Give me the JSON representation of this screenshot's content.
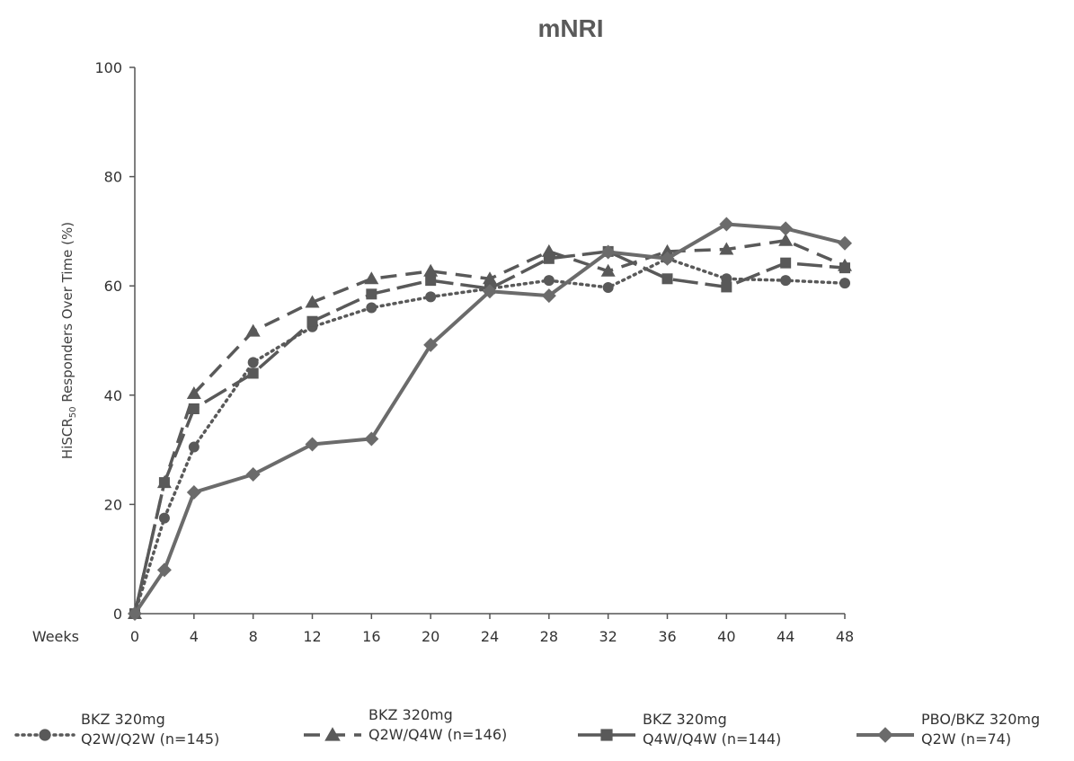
{
  "chart_data": {
    "type": "line",
    "title": "mNRI",
    "xlabel": "Weeks",
    "ylabel_main": "HiSCR",
    "ylabel_sub": "50",
    "ylabel_rest": " Responders Over Time (%)",
    "ylim": [
      0,
      100
    ],
    "yticks": [
      0,
      20,
      40,
      60,
      80,
      100
    ],
    "xlim": [
      0,
      48
    ],
    "xticks": [
      0,
      4,
      8,
      12,
      16,
      20,
      24,
      28,
      32,
      36,
      40,
      44,
      48
    ],
    "grid": false,
    "legend_position": "bottom",
    "series": [
      {
        "name_line1": "BKZ 320mg",
        "name_line2": "Q2W/Q2W (n=145)",
        "style": "dotted",
        "marker": "circle",
        "color": "#595959",
        "x": [
          0,
          2,
          4,
          8,
          12,
          16,
          20,
          24,
          28,
          32,
          36,
          40,
          44,
          48
        ],
        "y": [
          0,
          17.5,
          30.5,
          46,
          52.5,
          56,
          58,
          59.5,
          61,
          59.7,
          65,
          61.3,
          61,
          60.5
        ]
      },
      {
        "name_line1": "BKZ 320mg",
        "name_line2": "Q2W/Q4W (n=146)",
        "style": "dashed",
        "marker": "triangle",
        "color": "#595959",
        "x": [
          0,
          2,
          4,
          8,
          12,
          16,
          20,
          24,
          28,
          32,
          36,
          40,
          44,
          48
        ],
        "y": [
          0,
          24,
          40.3,
          51.7,
          57,
          61.3,
          62.7,
          61.3,
          66.3,
          62.7,
          66.3,
          66.7,
          68.3,
          63.7
        ]
      },
      {
        "name_line1": "BKZ 320mg",
        "name_line2": "Q4W/Q4W (n=144)",
        "style": "longdash",
        "marker": "square",
        "color": "#595959",
        "x": [
          0,
          2,
          4,
          8,
          12,
          16,
          20,
          24,
          28,
          32,
          36,
          40,
          44,
          48
        ],
        "y": [
          0,
          24,
          37.5,
          44,
          53.5,
          58.5,
          61,
          59.5,
          65,
          66.3,
          61.3,
          59.8,
          64.2,
          63.3
        ]
      },
      {
        "name_line1": "PBO/BKZ 320mg",
        "name_line2": "Q2W (n=74)",
        "style": "solid",
        "marker": "diamond",
        "color": "#6b6b6b",
        "x": [
          0,
          2,
          4,
          8,
          12,
          16,
          20,
          24,
          28,
          32,
          36,
          40,
          44,
          48
        ],
        "y": [
          0,
          8,
          22.2,
          25.5,
          31,
          32,
          49.2,
          59,
          58.2,
          66.2,
          65,
          71.3,
          70.5,
          67.8
        ]
      }
    ]
  }
}
